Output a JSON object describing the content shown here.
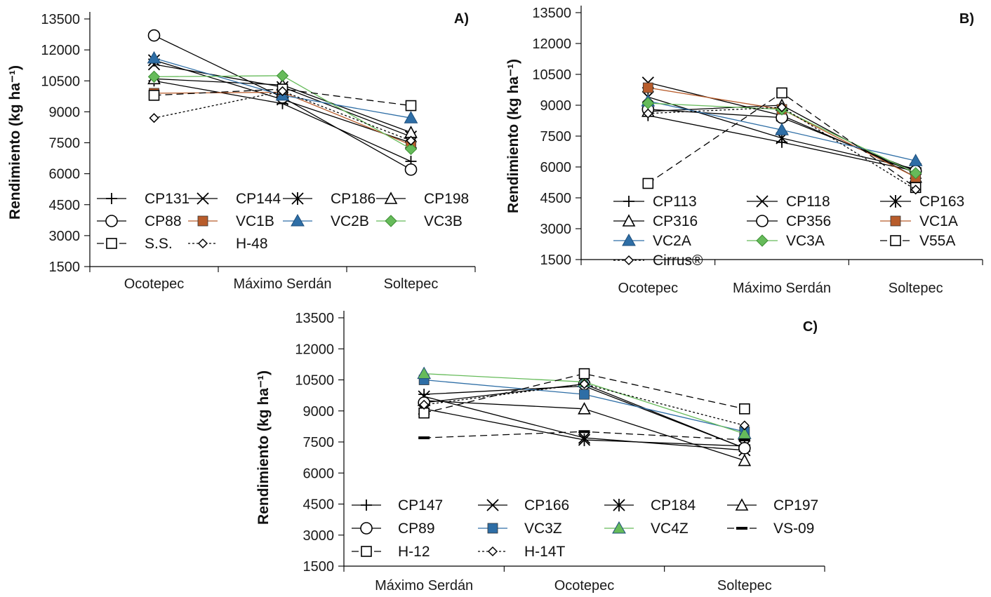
{
  "chart_data": [
    {
      "type": "line",
      "panel_label": "A)",
      "ylabel": "Rendimiento (kg ha⁻¹)",
      "ylim": [
        1500,
        13500
      ],
      "yticks": [
        "1500",
        "3000",
        "4500",
        "6000",
        "7500",
        "9000",
        "10500",
        "12000",
        "13500"
      ],
      "categories": [
        "Ocotepec",
        "Máximo Serdán",
        "Soltepec"
      ],
      "legend_columns": 4,
      "series": [
        {
          "name": "CP131",
          "values": [
            10500,
            9400,
            6600
          ],
          "color": "#000000",
          "marker": "plus",
          "dash": ""
        },
        {
          "name": "CP144",
          "values": [
            11300,
            10200,
            7800
          ],
          "color": "#000000",
          "marker": "x",
          "dash": ""
        },
        {
          "name": "CP186",
          "values": [
            11500,
            9600,
            7500
          ],
          "color": "#000000",
          "marker": "star",
          "dash": ""
        },
        {
          "name": "CP198",
          "values": [
            10600,
            10300,
            8000
          ],
          "color": "#000000",
          "marker": "triangle-open",
          "dash": ""
        },
        {
          "name": "CP88",
          "values": [
            12700,
            9700,
            6200
          ],
          "color": "#000000",
          "marker": "circle-open",
          "dash": ""
        },
        {
          "name": "VC1B",
          "values": [
            9900,
            9950,
            7400
          ],
          "color": "#b85c2b",
          "marker": "square-filled",
          "dash": ""
        },
        {
          "name": "VC2B",
          "values": [
            11600,
            9800,
            8700
          ],
          "color": "#2e6ea6",
          "marker": "triangle-filled",
          "dash": ""
        },
        {
          "name": "VC3B",
          "values": [
            10700,
            10750,
            7200
          ],
          "color": "#66bb5a",
          "marker": "diamond-filled",
          "dash": ""
        },
        {
          "name": "S.S.",
          "values": [
            9800,
            10100,
            9300
          ],
          "color": "#000000",
          "marker": "square-open",
          "dash": "10,6"
        },
        {
          "name": "H-48",
          "values": [
            8700,
            10000,
            7600
          ],
          "color": "#000000",
          "marker": "diamond-open",
          "dash": "3,3"
        }
      ]
    },
    {
      "type": "line",
      "panel_label": "B)",
      "ylabel": "Rendimiento (kg ha⁻¹)",
      "ylim": [
        1500,
        13500
      ],
      "yticks": [
        "1500",
        "3000",
        "4500",
        "6000",
        "7500",
        "9000",
        "10500",
        "12000",
        "13500"
      ],
      "categories": [
        "Ocotepec",
        "Máximo Serdán",
        "Soltepec"
      ],
      "legend_columns": 3,
      "series": [
        {
          "name": "CP113",
          "values": [
            8500,
            7200,
            5800
          ],
          "color": "#000000",
          "marker": "plus",
          "dash": ""
        },
        {
          "name": "CP118",
          "values": [
            10100,
            8500,
            5700
          ],
          "color": "#000000",
          "marker": "x",
          "dash": ""
        },
        {
          "name": "CP163",
          "values": [
            9400,
            7400,
            5900
          ],
          "color": "#000000",
          "marker": "star",
          "dash": ""
        },
        {
          "name": "CP316",
          "values": [
            8700,
            9000,
            5500
          ],
          "color": "#000000",
          "marker": "triangle-open",
          "dash": ""
        },
        {
          "name": "CP356",
          "values": [
            8800,
            8400,
            5800
          ],
          "color": "#000000",
          "marker": "circle-open",
          "dash": ""
        },
        {
          "name": "VC1A",
          "values": [
            9850,
            8800,
            5500
          ],
          "color": "#b85c2b",
          "marker": "square-filled",
          "dash": ""
        },
        {
          "name": "VC2A",
          "values": [
            9200,
            7800,
            6300
          ],
          "color": "#2e6ea6",
          "marker": "triangle-filled",
          "dash": ""
        },
        {
          "name": "VC3A",
          "values": [
            9100,
            8800,
            5700
          ],
          "color": "#66bb5a",
          "marker": "diamond-filled",
          "dash": ""
        },
        {
          "name": "V55A",
          "values": [
            5200,
            9600,
            5000
          ],
          "color": "#000000",
          "marker": "square-open",
          "dash": "10,6"
        },
        {
          "name": "Cirrus®",
          "values": [
            8600,
            8900,
            4900
          ],
          "color": "#000000",
          "marker": "diamond-open",
          "dash": "3,3"
        }
      ]
    },
    {
      "type": "line",
      "panel_label": "C)",
      "ylabel": "Rendimiento (kg ha⁻¹)",
      "ylim": [
        1500,
        13500
      ],
      "yticks": [
        "1500",
        "3000",
        "4500",
        "6000",
        "7500",
        "9000",
        "10500",
        "12000",
        "13500"
      ],
      "categories": [
        "Máximo Serdán",
        "Ocotepec",
        "Soltepec"
      ],
      "legend_columns": 4,
      "series": [
        {
          "name": "CP147",
          "values": [
            9800,
            10200,
            7200
          ],
          "color": "#000000",
          "marker": "plus",
          "dash": ""
        },
        {
          "name": "CP166",
          "values": [
            9700,
            7700,
            7100
          ],
          "color": "#000000",
          "marker": "x",
          "dash": ""
        },
        {
          "name": "CP184",
          "values": [
            9100,
            7600,
            7300
          ],
          "color": "#000000",
          "marker": "star",
          "dash": ""
        },
        {
          "name": "CP197",
          "values": [
            9500,
            9100,
            6600
          ],
          "color": "#000000",
          "marker": "triangle-open",
          "dash": ""
        },
        {
          "name": "CP89",
          "values": [
            9400,
            10300,
            7200
          ],
          "color": "#000000",
          "marker": "circle-open",
          "dash": ""
        },
        {
          "name": "VC3Z",
          "values": [
            10500,
            9800,
            8000
          ],
          "color": "#2e6ea6",
          "marker": "square-filled",
          "dash": ""
        },
        {
          "name": "VC4Z",
          "values": [
            10800,
            10400,
            7900
          ],
          "color": "#66bb5a",
          "marker": "triangle-filled",
          "dash": ""
        },
        {
          "name": "VS-09",
          "values": [
            7700,
            8000,
            7600
          ],
          "color": "#000000",
          "marker": "dash",
          "dash": "10,6"
        },
        {
          "name": "H-12",
          "values": [
            8900,
            10800,
            9100
          ],
          "color": "#000000",
          "marker": "square-open",
          "dash": "10,6"
        },
        {
          "name": "H-14T",
          "values": [
            9300,
            10300,
            8300
          ],
          "color": "#000000",
          "marker": "diamond-open",
          "dash": "3,3"
        }
      ]
    }
  ]
}
